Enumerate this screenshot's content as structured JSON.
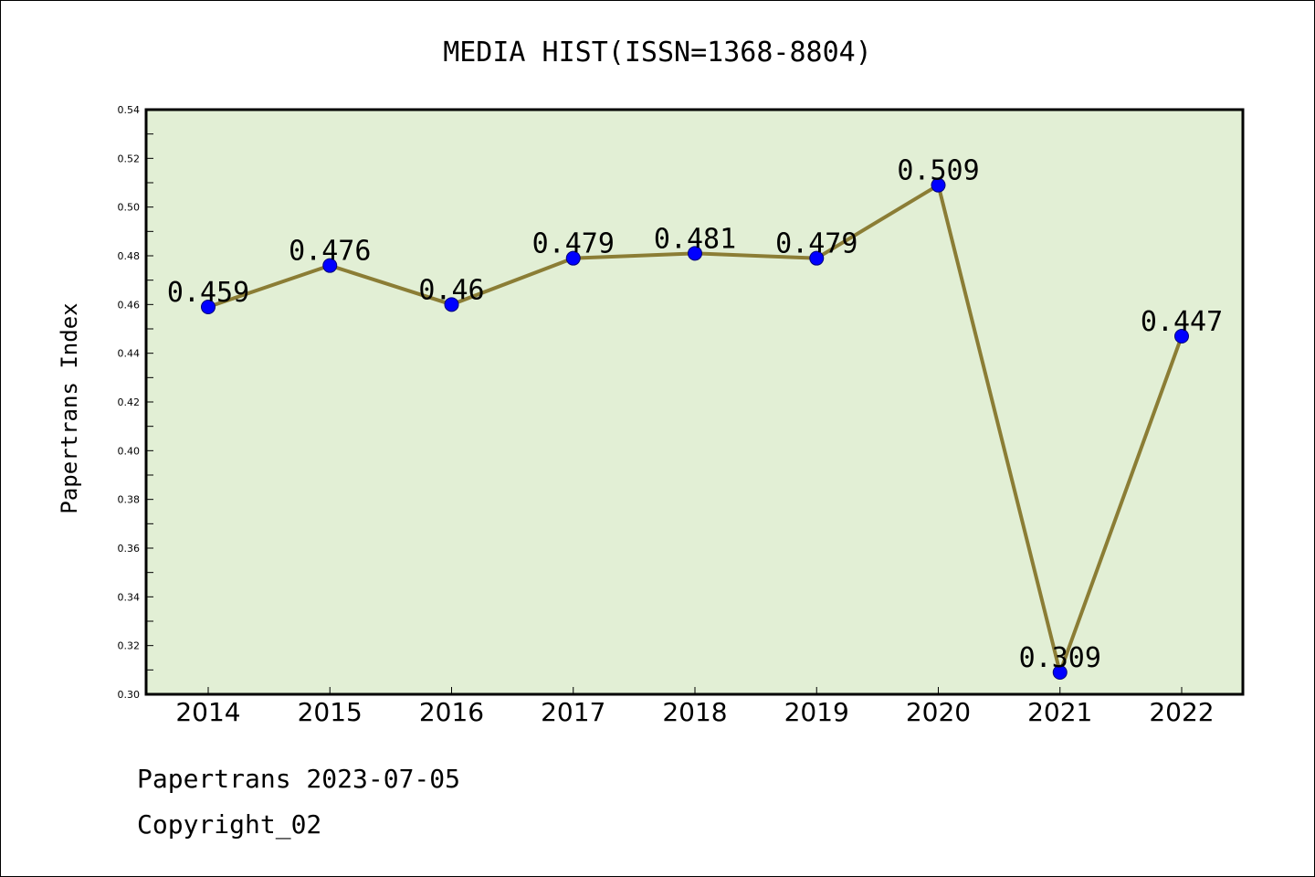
{
  "chart_data": {
    "type": "line",
    "title": "MEDIA HIST(ISSN=1368-8804)",
    "xlabel": "",
    "ylabel": "Papertrans Index",
    "categories": [
      "2014",
      "2015",
      "2016",
      "2017",
      "2018",
      "2019",
      "2020",
      "2021",
      "2022"
    ],
    "series": [
      {
        "values": [
          0.459,
          0.476,
          0.46,
          0.479,
          0.481,
          0.479,
          0.509,
          0.309,
          0.447
        ],
        "labels": [
          "0.459",
          "0.476",
          "0.46",
          "0.479",
          "0.481",
          "0.479",
          "0.509",
          "0.309",
          "0.447"
        ]
      }
    ],
    "ylim": [
      0.3,
      0.54
    ],
    "yticks": [
      "0.30",
      "0.32",
      "0.34",
      "0.36",
      "0.38",
      "0.40",
      "0.42",
      "0.44",
      "0.46",
      "0.48",
      "0.50",
      "0.52",
      "0.54"
    ],
    "grid": false,
    "legend": "none",
    "colors": {
      "plot_background": "#e2efd5",
      "line": "#8b7d35",
      "marker": "#0000ff"
    }
  },
  "footer": {
    "line1": "Papertrans 2023-07-05",
    "line2": "Copyright_02"
  }
}
